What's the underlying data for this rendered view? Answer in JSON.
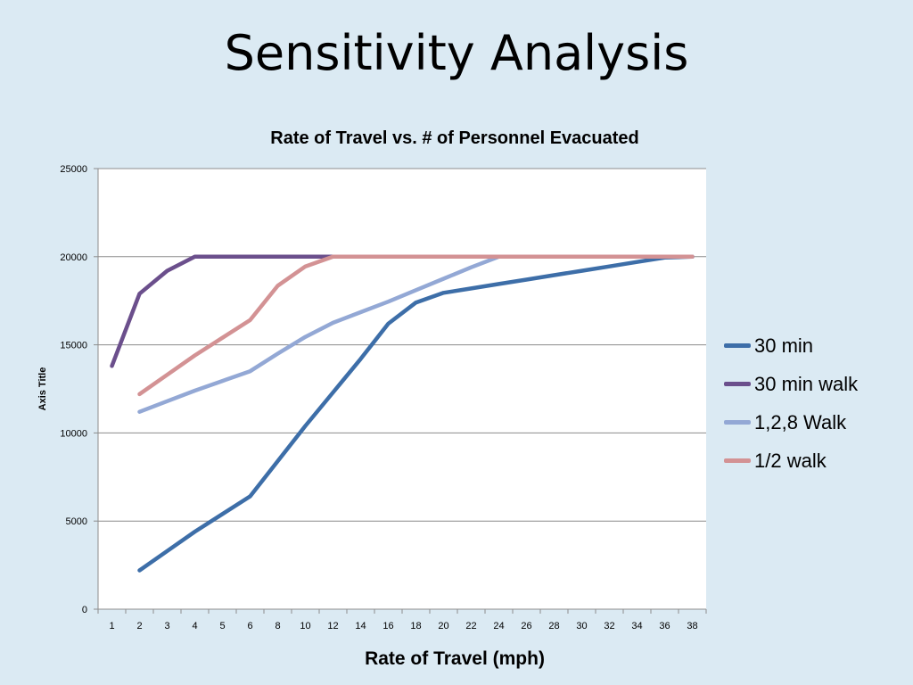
{
  "slide": {
    "title": "Sensitivity Analysis"
  },
  "chart_data": {
    "type": "line",
    "title": "Rate of Travel vs. # of Personnel Evacuated",
    "xlabel": "Rate of Travel (mph)",
    "ylabel": "Axis Title",
    "categories": [
      "1",
      "2",
      "3",
      "4",
      "5",
      "6",
      "8",
      "10",
      "12",
      "14",
      "16",
      "18",
      "20",
      "22",
      "24",
      "26",
      "28",
      "30",
      "32",
      "34",
      "36",
      "38"
    ],
    "ylim": [
      0,
      25000
    ],
    "yticks": [
      0,
      5000,
      10000,
      15000,
      20000,
      25000
    ],
    "grid": true,
    "legend_position": "right",
    "series": [
      {
        "name": "30 min",
        "color": "#3d6ea8",
        "values": [
          null,
          2200,
          3300,
          4400,
          5400,
          6400,
          8400,
          10400,
          12300,
          14200,
          16200,
          17400,
          17950,
          18200,
          18450,
          18700,
          18950,
          19200,
          19450,
          19700,
          19950,
          20000
        ]
      },
      {
        "name": "30 min walk",
        "color": "#6b4f8c",
        "values": [
          13800,
          17900,
          19200,
          20000,
          20000,
          20000,
          20000,
          20000,
          20000,
          20000,
          20000,
          20000,
          20000,
          20000,
          20000,
          20000,
          20000,
          20000,
          20000,
          20000,
          20000,
          20000
        ]
      },
      {
        "name": "1,2,8 Walk",
        "color": "#93a8d5",
        "values": [
          null,
          11200,
          11800,
          12400,
          12950,
          13500,
          14500,
          15450,
          16250,
          16850,
          17450,
          18100,
          18750,
          19400,
          20000,
          20000,
          20000,
          20000,
          20000,
          20000,
          20000,
          20000
        ]
      },
      {
        "name": "1/2 walk",
        "color": "#d39294",
        "values": [
          null,
          12200,
          13300,
          14400,
          15400,
          16400,
          18350,
          19450,
          20000,
          20000,
          20000,
          20000,
          20000,
          20000,
          20000,
          20000,
          20000,
          20000,
          20000,
          20000,
          20000,
          20000
        ]
      }
    ]
  }
}
